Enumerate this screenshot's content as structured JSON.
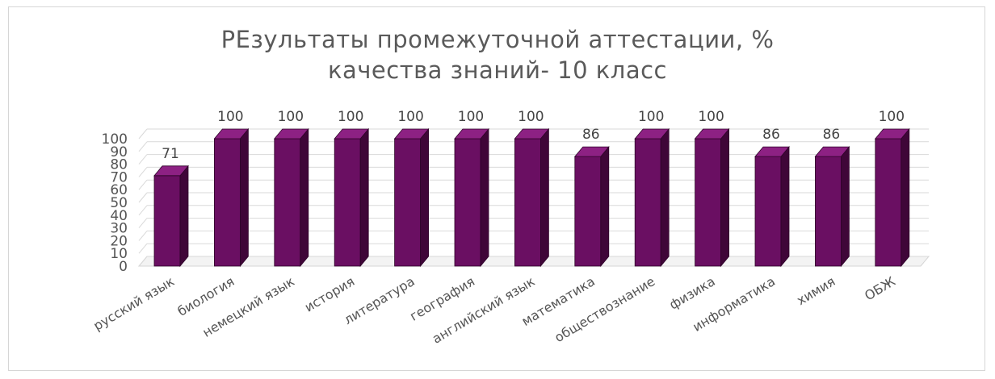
{
  "chart_data": {
    "type": "bar",
    "title_line1": "РЕзультаты промежуточной аттестации, %",
    "title_line2": "качества знаний- 10 класс",
    "categories": [
      "русский язык",
      "биология",
      "немецкий язык",
      "история",
      "литература",
      "география",
      "английский язык",
      "математика",
      "обществознание",
      "физика",
      "информатика",
      "химия",
      "ОБЖ"
    ],
    "values": [
      71,
      100,
      100,
      100,
      100,
      100,
      100,
      86,
      100,
      100,
      86,
      86,
      100
    ],
    "data_labels": [
      "71",
      "100",
      "100",
      "100",
      "100",
      "100",
      "100",
      "86",
      "100",
      "100",
      "86",
      "86",
      "100"
    ],
    "y_ticks": [
      "0",
      "10",
      "20",
      "30",
      "40",
      "50",
      "60",
      "70",
      "80",
      "90",
      "100"
    ],
    "ylim": [
      0,
      100
    ],
    "grid": true,
    "three_d": true,
    "bar_color": "#6a0f62",
    "bar_side_color": "#3f0638",
    "bar_top_color": "#8d2183"
  }
}
